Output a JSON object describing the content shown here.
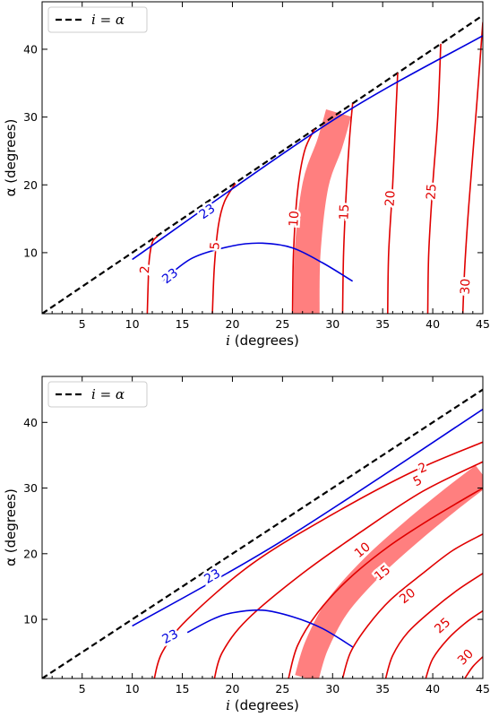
{
  "chart_data": [
    {
      "type": "line",
      "panel": "top",
      "xlabel_var": "i",
      "xlabel_unit": " (degrees)",
      "ylabel": "α (degrees)",
      "xlim": [
        1,
        45
      ],
      "ylim": [
        1,
        47
      ],
      "xticks": [
        5,
        10,
        15,
        20,
        25,
        30,
        35,
        40,
        45
      ],
      "yticks": [
        10,
        20,
        30,
        40
      ],
      "legend": {
        "label": "i = α",
        "position": "top-left"
      },
      "series": [
        {
          "role": "identity line",
          "style": "dashed",
          "color": "#000000",
          "x": [
            1,
            45
          ],
          "y": [
            1,
            45
          ]
        },
        {
          "role": "contour 2",
          "label": "2",
          "color": "#e00000",
          "points": [
            [
              11.5,
              1
            ],
            [
              11.6,
              6
            ],
            [
              11.7,
              9
            ],
            [
              12.0,
              11.5
            ],
            [
              12.5,
              12.4
            ]
          ],
          "label_at": [
            11.3,
            7.5
          ]
        },
        {
          "role": "contour 5",
          "label": "5",
          "color": "#e00000",
          "points": [
            [
              18.0,
              1
            ],
            [
              18.2,
              8
            ],
            [
              18.6,
              14
            ],
            [
              19.2,
              17.5
            ],
            [
              20.3,
              20.2
            ]
          ],
          "label_at": [
            18.3,
            11
          ]
        },
        {
          "role": "contour 10",
          "label": "10",
          "color": "#e00000",
          "points": [
            [
              26.0,
              1
            ],
            [
              26.1,
              10
            ],
            [
              26.5,
              19
            ],
            [
              27.2,
              25
            ],
            [
              28.2,
              28.2
            ]
          ],
          "label_at": [
            26.2,
            15
          ]
        },
        {
          "role": "contour 15",
          "label": "15",
          "color": "#e00000",
          "points": [
            [
              31.0,
              1
            ],
            [
              31.1,
              10
            ],
            [
              31.4,
              20
            ],
            [
              31.7,
              27
            ],
            [
              32.0,
              32
            ]
          ],
          "label_at": [
            31.2,
            16
          ]
        },
        {
          "role": "contour 20",
          "label": "20",
          "color": "#e00000",
          "points": [
            [
              35.5,
              1
            ],
            [
              35.6,
              10
            ],
            [
              36.0,
              20
            ],
            [
              36.3,
              30
            ],
            [
              36.5,
              36.5
            ]
          ],
          "label_at": [
            35.8,
            18
          ]
        },
        {
          "role": "contour 25",
          "label": "25",
          "color": "#e00000",
          "points": [
            [
              39.5,
              1
            ],
            [
              39.6,
              10
            ],
            [
              40.0,
              20
            ],
            [
              40.5,
              30
            ],
            [
              40.8,
              40.8
            ]
          ],
          "label_at": [
            39.9,
            19
          ]
        },
        {
          "role": "contour 30",
          "label": "30",
          "color": "#e00000",
          "points": [
            [
              43.0,
              1
            ],
            [
              43.2,
              8
            ],
            [
              43.6,
              17
            ],
            [
              44.4,
              32
            ],
            [
              45,
              44
            ]
          ],
          "label_at": [
            43.3,
            5
          ]
        },
        {
          "role": "contour 23 upper",
          "label": "23",
          "color": "#0000dd",
          "points": [
            [
              10,
              9
            ],
            [
              30,
              29.5
            ],
            [
              45,
              42
            ]
          ],
          "label_at": [
            17.5,
            16
          ]
        },
        {
          "role": "contour 23 lower",
          "label": "23",
          "color": "#0000dd",
          "points": [
            [
              13,
              5.8
            ],
            [
              16,
              9.2
            ],
            [
              20,
              11
            ],
            [
              23,
              11.4
            ],
            [
              26,
              10.7
            ],
            [
              29,
              8.5
            ],
            [
              32,
              5.8
            ]
          ],
          "label_at": [
            13.8,
            6.5
          ]
        }
      ],
      "band": {
        "color": "#ff7f7f",
        "centre": [
          [
            27.4,
            1
          ],
          [
            27.5,
            10
          ],
          [
            28.3,
            20
          ],
          [
            29.7,
            26
          ],
          [
            30.6,
            30.6
          ]
        ],
        "width_i": 2.6
      }
    },
    {
      "type": "line",
      "panel": "bottom",
      "xlabel_var": "i",
      "xlabel_unit": " (degrees)",
      "ylabel": "α (degrees)",
      "xlim": [
        1,
        45
      ],
      "ylim": [
        1,
        47
      ],
      "xticks": [
        5,
        10,
        15,
        20,
        25,
        30,
        35,
        40,
        45
      ],
      "yticks": [
        10,
        20,
        30,
        40
      ],
      "legend": {
        "label": "i = α",
        "position": "top-left"
      },
      "series": [
        {
          "role": "identity line",
          "style": "dashed",
          "color": "#000000",
          "x": [
            1,
            45
          ],
          "y": [
            1,
            45
          ]
        },
        {
          "role": "contour 2",
          "label": "2",
          "color": "#e00000",
          "points": [
            [
              12.2,
              1
            ],
            [
              13,
              5
            ],
            [
              15.5,
              10
            ],
            [
              22,
              18.5
            ],
            [
              30,
              26
            ],
            [
              38,
              32.5
            ],
            [
              45,
              37
            ]
          ],
          "label_at": [
            39,
            33
          ]
        },
        {
          "role": "contour 5",
          "label": "5",
          "color": "#e00000",
          "points": [
            [
              18.2,
              1
            ],
            [
              19,
              5
            ],
            [
              21.5,
              10
            ],
            [
              27,
              17
            ],
            [
              33,
              23.5
            ],
            [
              39,
              29.5
            ],
            [
              45,
              34
            ]
          ],
          "label_at": [
            38.5,
            31
          ]
        },
        {
          "role": "contour 10",
          "label": "10",
          "color": "#e00000",
          "points": [
            [
              25.6,
              1
            ],
            [
              26.5,
              6
            ],
            [
              28.5,
              11
            ],
            [
              31.5,
              16
            ],
            [
              35.5,
              21
            ],
            [
              40,
              25.5
            ],
            [
              45,
              30
            ]
          ],
          "label_at": [
            33,
            20.5
          ]
        },
        {
          "role": "contour 15",
          "label": "15",
          "color": "#e00000",
          "points": [
            [
              31,
              1
            ],
            [
              31.8,
              5
            ],
            [
              33.5,
              9
            ],
            [
              35.8,
              13
            ],
            [
              39,
              17
            ],
            [
              42,
              20.5
            ],
            [
              45,
              23
            ]
          ],
          "label_at": [
            35,
            17
          ]
        },
        {
          "role": "contour 20",
          "label": "20",
          "color": "#e00000",
          "points": [
            [
              35.3,
              1
            ],
            [
              36,
              4.5
            ],
            [
              37.5,
              8
            ],
            [
              40,
              11.5
            ],
            [
              42.5,
              14.5
            ],
            [
              45,
              17
            ]
          ],
          "label_at": [
            37.5,
            13.5
          ]
        },
        {
          "role": "contour 25",
          "label": "25",
          "color": "#e00000",
          "points": [
            [
              39.3,
              1
            ],
            [
              40,
              4
            ],
            [
              41.5,
              7
            ],
            [
              43.3,
              9.5
            ],
            [
              45,
              11.3
            ]
          ],
          "label_at": [
            41,
            9
          ]
        },
        {
          "role": "contour 30",
          "label": "30",
          "color": "#e00000",
          "points": [
            [
              43.2,
              1
            ],
            [
              44,
              2.8
            ],
            [
              45,
              4.3
            ]
          ],
          "label_at": [
            43.3,
            4.2
          ]
        },
        {
          "role": "contour 23 upper",
          "label": "23",
          "color": "#0000dd",
          "points": [
            [
              10,
              9
            ],
            [
              25,
              22
            ],
            [
              45,
              42
            ]
          ],
          "label_at": [
            18,
            16.5
          ]
        },
        {
          "role": "contour 23 lower",
          "label": "23",
          "color": "#0000dd",
          "points": [
            [
              15.5,
              8
            ],
            [
              18,
              10
            ],
            [
              20,
              11
            ],
            [
              23,
              11.4
            ],
            [
              26,
              10.4
            ],
            [
              29,
              8.6
            ],
            [
              32,
              5.8
            ]
          ],
          "label_at": [
            13.8,
            7.3
          ]
        }
      ],
      "band": {
        "color": "#ff7f7f",
        "centre": [
          [
            27.4,
            1
          ],
          [
            28.4,
            6
          ],
          [
            30.5,
            12
          ],
          [
            34,
            18
          ],
          [
            38,
            23.5
          ],
          [
            42,
            28.5
          ],
          [
            45,
            32
          ]
        ],
        "width_i": 2.4
      }
    }
  ]
}
